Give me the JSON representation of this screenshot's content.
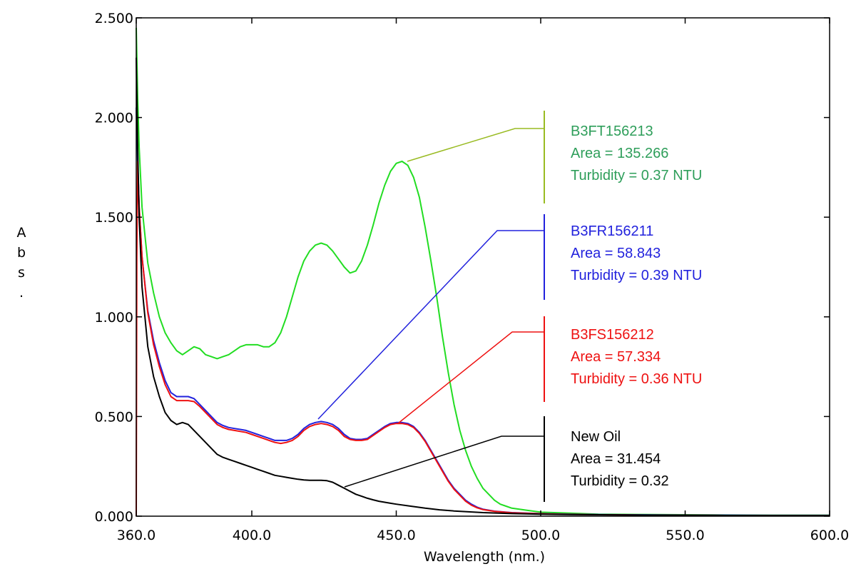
{
  "chart_data": {
    "type": "line",
    "xlabel": "Wavelength (nm.)",
    "ylabel_chars": [
      "A",
      "b",
      "s",
      "."
    ],
    "xlim": [
      360,
      600
    ],
    "ylim": [
      0,
      2.5
    ],
    "x_ticks": [
      360,
      400,
      450,
      500,
      550,
      600
    ],
    "x_tick_labels": [
      "360.0",
      "400.0",
      "450.0",
      "500.0",
      "550.0",
      "600.0"
    ],
    "y_ticks": [
      0,
      0.5,
      1.0,
      1.5,
      2.0,
      2.5
    ],
    "y_tick_labels": [
      "0.000",
      "0.500",
      "1.000",
      "1.500",
      "2.000",
      "2.500"
    ],
    "grid": false,
    "series": [
      {
        "name": "B3FT156213",
        "color": "#22dd22",
        "points": [
          [
            360,
            2.45
          ],
          [
            360.5,
            2.1
          ],
          [
            361,
            1.85
          ],
          [
            362,
            1.55
          ],
          [
            364,
            1.27
          ],
          [
            366,
            1.12
          ],
          [
            368,
            1.0
          ],
          [
            370,
            0.92
          ],
          [
            372,
            0.87
          ],
          [
            374,
            0.83
          ],
          [
            376,
            0.81
          ],
          [
            378,
            0.83
          ],
          [
            380,
            0.85
          ],
          [
            382,
            0.84
          ],
          [
            384,
            0.81
          ],
          [
            386,
            0.8
          ],
          [
            388,
            0.79
          ],
          [
            390,
            0.8
          ],
          [
            392,
            0.81
          ],
          [
            394,
            0.83
          ],
          [
            396,
            0.85
          ],
          [
            398,
            0.86
          ],
          [
            400,
            0.86
          ],
          [
            402,
            0.86
          ],
          [
            404,
            0.85
          ],
          [
            406,
            0.85
          ],
          [
            408,
            0.87
          ],
          [
            410,
            0.92
          ],
          [
            412,
            1.0
          ],
          [
            414,
            1.1
          ],
          [
            416,
            1.2
          ],
          [
            418,
            1.28
          ],
          [
            420,
            1.33
          ],
          [
            422,
            1.36
          ],
          [
            424,
            1.37
          ],
          [
            426,
            1.36
          ],
          [
            428,
            1.33
          ],
          [
            430,
            1.29
          ],
          [
            432,
            1.25
          ],
          [
            434,
            1.22
          ],
          [
            436,
            1.23
          ],
          [
            438,
            1.28
          ],
          [
            440,
            1.36
          ],
          [
            442,
            1.46
          ],
          [
            444,
            1.57
          ],
          [
            446,
            1.66
          ],
          [
            448,
            1.73
          ],
          [
            450,
            1.77
          ],
          [
            452,
            1.78
          ],
          [
            454,
            1.76
          ],
          [
            456,
            1.7
          ],
          [
            458,
            1.6
          ],
          [
            460,
            1.45
          ],
          [
            462,
            1.28
          ],
          [
            464,
            1.1
          ],
          [
            466,
            0.9
          ],
          [
            468,
            0.72
          ],
          [
            470,
            0.56
          ],
          [
            472,
            0.43
          ],
          [
            474,
            0.33
          ],
          [
            476,
            0.25
          ],
          [
            478,
            0.19
          ],
          [
            480,
            0.14
          ],
          [
            482,
            0.11
          ],
          [
            484,
            0.08
          ],
          [
            486,
            0.06
          ],
          [
            488,
            0.05
          ],
          [
            490,
            0.04
          ],
          [
            495,
            0.03
          ],
          [
            500,
            0.02
          ],
          [
            510,
            0.015
          ],
          [
            520,
            0.01
          ],
          [
            540,
            0.008
          ],
          [
            560,
            0.006
          ],
          [
            580,
            0.005
          ],
          [
            600,
            0.005
          ]
        ]
      },
      {
        "name": "B3FR156211",
        "color": "#2222dd",
        "points": [
          [
            360,
            2.05
          ],
          [
            360.5,
            1.78
          ],
          [
            361,
            1.55
          ],
          [
            362,
            1.3
          ],
          [
            364,
            1.03
          ],
          [
            366,
            0.88
          ],
          [
            368,
            0.77
          ],
          [
            370,
            0.68
          ],
          [
            372,
            0.62
          ],
          [
            374,
            0.6
          ],
          [
            376,
            0.6
          ],
          [
            378,
            0.6
          ],
          [
            380,
            0.59
          ],
          [
            382,
            0.56
          ],
          [
            384,
            0.53
          ],
          [
            386,
            0.5
          ],
          [
            388,
            0.47
          ],
          [
            390,
            0.455
          ],
          [
            392,
            0.445
          ],
          [
            394,
            0.44
          ],
          [
            396,
            0.435
          ],
          [
            398,
            0.43
          ],
          [
            400,
            0.42
          ],
          [
            402,
            0.41
          ],
          [
            404,
            0.4
          ],
          [
            406,
            0.39
          ],
          [
            408,
            0.38
          ],
          [
            410,
            0.38
          ],
          [
            412,
            0.38
          ],
          [
            414,
            0.39
          ],
          [
            416,
            0.41
          ],
          [
            418,
            0.44
          ],
          [
            420,
            0.46
          ],
          [
            422,
            0.47
          ],
          [
            424,
            0.475
          ],
          [
            426,
            0.47
          ],
          [
            428,
            0.46
          ],
          [
            430,
            0.44
          ],
          [
            432,
            0.41
          ],
          [
            434,
            0.39
          ],
          [
            436,
            0.385
          ],
          [
            438,
            0.385
          ],
          [
            440,
            0.39
          ],
          [
            442,
            0.41
          ],
          [
            444,
            0.43
          ],
          [
            446,
            0.45
          ],
          [
            448,
            0.465
          ],
          [
            450,
            0.47
          ],
          [
            452,
            0.47
          ],
          [
            454,
            0.465
          ],
          [
            456,
            0.45
          ],
          [
            458,
            0.42
          ],
          [
            460,
            0.38
          ],
          [
            462,
            0.33
          ],
          [
            464,
            0.28
          ],
          [
            466,
            0.23
          ],
          [
            468,
            0.18
          ],
          [
            470,
            0.14
          ],
          [
            472,
            0.11
          ],
          [
            474,
            0.08
          ],
          [
            476,
            0.06
          ],
          [
            478,
            0.045
          ],
          [
            480,
            0.035
          ],
          [
            484,
            0.025
          ],
          [
            490,
            0.018
          ],
          [
            500,
            0.013
          ],
          [
            510,
            0.01
          ],
          [
            520,
            0.008
          ],
          [
            540,
            0.006
          ],
          [
            560,
            0.005
          ],
          [
            580,
            0.004
          ],
          [
            600,
            0.004
          ]
        ]
      },
      {
        "name": "B3FS156212",
        "color": "#ee1111",
        "points": [
          [
            360,
            0.0
          ],
          [
            360.2,
            1.3
          ],
          [
            360.5,
            1.78
          ],
          [
            361,
            1.55
          ],
          [
            362,
            1.3
          ],
          [
            364,
            1.02
          ],
          [
            366,
            0.86
          ],
          [
            368,
            0.75
          ],
          [
            370,
            0.66
          ],
          [
            372,
            0.6
          ],
          [
            374,
            0.58
          ],
          [
            376,
            0.58
          ],
          [
            378,
            0.58
          ],
          [
            380,
            0.575
          ],
          [
            382,
            0.55
          ],
          [
            384,
            0.52
          ],
          [
            386,
            0.49
          ],
          [
            388,
            0.46
          ],
          [
            390,
            0.445
          ],
          [
            392,
            0.435
          ],
          [
            394,
            0.43
          ],
          [
            396,
            0.425
          ],
          [
            398,
            0.42
          ],
          [
            400,
            0.41
          ],
          [
            402,
            0.4
          ],
          [
            404,
            0.39
          ],
          [
            406,
            0.38
          ],
          [
            408,
            0.37
          ],
          [
            410,
            0.365
          ],
          [
            412,
            0.37
          ],
          [
            414,
            0.38
          ],
          [
            416,
            0.4
          ],
          [
            418,
            0.43
          ],
          [
            420,
            0.45
          ],
          [
            422,
            0.46
          ],
          [
            424,
            0.465
          ],
          [
            426,
            0.46
          ],
          [
            428,
            0.45
          ],
          [
            430,
            0.43
          ],
          [
            432,
            0.4
          ],
          [
            434,
            0.385
          ],
          [
            436,
            0.38
          ],
          [
            438,
            0.38
          ],
          [
            440,
            0.385
          ],
          [
            442,
            0.405
          ],
          [
            444,
            0.425
          ],
          [
            446,
            0.445
          ],
          [
            448,
            0.46
          ],
          [
            450,
            0.465
          ],
          [
            452,
            0.465
          ],
          [
            454,
            0.46
          ],
          [
            456,
            0.445
          ],
          [
            458,
            0.415
          ],
          [
            460,
            0.375
          ],
          [
            462,
            0.325
          ],
          [
            464,
            0.275
          ],
          [
            466,
            0.225
          ],
          [
            468,
            0.175
          ],
          [
            470,
            0.135
          ],
          [
            472,
            0.105
          ],
          [
            474,
            0.075
          ],
          [
            476,
            0.055
          ],
          [
            478,
            0.042
          ],
          [
            480,
            0.033
          ],
          [
            484,
            0.024
          ],
          [
            490,
            0.017
          ],
          [
            500,
            0.012
          ],
          [
            510,
            0.009
          ],
          [
            520,
            0.007
          ],
          [
            540,
            0.005
          ],
          [
            560,
            0.004
          ],
          [
            580,
            0.003
          ],
          [
            600,
            0.003
          ]
        ]
      },
      {
        "name": "New Oil",
        "color": "#000000",
        "points": [
          [
            360,
            2.3
          ],
          [
            360.5,
            1.85
          ],
          [
            361,
            1.5
          ],
          [
            362,
            1.15
          ],
          [
            364,
            0.85
          ],
          [
            366,
            0.7
          ],
          [
            368,
            0.6
          ],
          [
            370,
            0.52
          ],
          [
            372,
            0.48
          ],
          [
            374,
            0.46
          ],
          [
            376,
            0.47
          ],
          [
            378,
            0.46
          ],
          [
            380,
            0.43
          ],
          [
            382,
            0.4
          ],
          [
            384,
            0.37
          ],
          [
            386,
            0.34
          ],
          [
            388,
            0.31
          ],
          [
            390,
            0.295
          ],
          [
            392,
            0.285
          ],
          [
            394,
            0.275
          ],
          [
            396,
            0.265
          ],
          [
            398,
            0.255
          ],
          [
            400,
            0.245
          ],
          [
            402,
            0.235
          ],
          [
            404,
            0.225
          ],
          [
            406,
            0.215
          ],
          [
            408,
            0.205
          ],
          [
            410,
            0.2
          ],
          [
            412,
            0.195
          ],
          [
            414,
            0.19
          ],
          [
            416,
            0.185
          ],
          [
            418,
            0.182
          ],
          [
            420,
            0.18
          ],
          [
            422,
            0.18
          ],
          [
            424,
            0.18
          ],
          [
            426,
            0.178
          ],
          [
            428,
            0.17
          ],
          [
            430,
            0.155
          ],
          [
            432,
            0.14
          ],
          [
            434,
            0.125
          ],
          [
            436,
            0.11
          ],
          [
            438,
            0.1
          ],
          [
            440,
            0.09
          ],
          [
            442,
            0.082
          ],
          [
            444,
            0.075
          ],
          [
            446,
            0.07
          ],
          [
            448,
            0.065
          ],
          [
            450,
            0.06
          ],
          [
            455,
            0.05
          ],
          [
            460,
            0.04
          ],
          [
            465,
            0.032
          ],
          [
            470,
            0.026
          ],
          [
            480,
            0.018
          ],
          [
            490,
            0.013
          ],
          [
            500,
            0.01
          ],
          [
            510,
            0.008
          ],
          [
            520,
            0.007
          ],
          [
            540,
            0.005
          ],
          [
            560,
            0.004
          ],
          [
            580,
            0.003
          ],
          [
            600,
            0.003
          ]
        ]
      }
    ],
    "annotations": [
      {
        "id": "ft",
        "color": "#2e9e5a",
        "leader_color": "#99bb22",
        "lines": [
          "B3FT156213",
          "Area = 135.266",
          "Turbidity = 0.37 NTU"
        ]
      },
      {
        "id": "fr",
        "color": "#2222dd",
        "leader_color": "#2222dd",
        "lines": [
          "B3FR156211",
          "Area = 58.843",
          "Turbidity = 0.39 NTU"
        ]
      },
      {
        "id": "fs",
        "color": "#ee1111",
        "leader_color": "#ee1111",
        "lines": [
          "B3FS156212",
          "Area = 57.334",
          "Turbidity = 0.36 NTU"
        ]
      },
      {
        "id": "no",
        "color": "#000000",
        "leader_color": "#000000",
        "lines": [
          "New Oil",
          "Area = 31.454",
          "Turbidity = 0.32"
        ]
      }
    ]
  }
}
